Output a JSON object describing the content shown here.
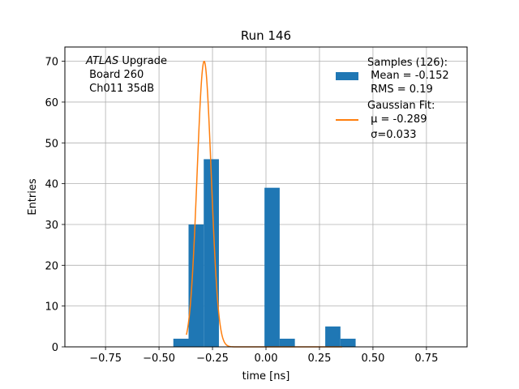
{
  "chart_data": {
    "type": "bar",
    "title": "Run 146",
    "xlabel": "time [ns]",
    "ylabel": "Entries",
    "xlim": [
      -0.94,
      0.94
    ],
    "ylim": [
      0,
      73.5
    ],
    "xticks": [
      -0.75,
      -0.5,
      -0.25,
      0.0,
      0.25,
      0.5,
      0.75
    ],
    "xtick_labels": [
      "−0.75",
      "−0.50",
      "−0.25",
      "0.00",
      "0.25",
      "0.50",
      "0.75"
    ],
    "yticks": [
      0,
      10,
      20,
      30,
      40,
      50,
      60,
      70
    ],
    "ytick_labels": [
      "0",
      "10",
      "20",
      "30",
      "40",
      "50",
      "60",
      "70"
    ],
    "grid": true,
    "legend_position": "top-right",
    "bin_width": 0.071,
    "histogram": {
      "name": "Samples (126):",
      "color": "#1f77b4",
      "bins": [
        {
          "x0": -0.433,
          "count": 2
        },
        {
          "x0": -0.362,
          "count": 30
        },
        {
          "x0": -0.291,
          "count": 46
        },
        {
          "x0": -0.007,
          "count": 39
        },
        {
          "x0": 0.064,
          "count": 2
        },
        {
          "x0": 0.277,
          "count": 5
        },
        {
          "x0": 0.348,
          "count": 2
        }
      ]
    },
    "fit": {
      "name": "Gaussian Fit:",
      "color": "#ff7f0e",
      "mu": -0.289,
      "sigma": 0.033,
      "amplitude": 70,
      "x_range": [
        -0.372,
        0.356
      ]
    },
    "legend": {
      "samples_label": "Samples (126):",
      "samples_mean": " Mean = -0.152",
      "samples_rms": " RMS = 0.19",
      "fit_label": "Gaussian Fit:",
      "fit_mu": " μ = -0.289",
      "fit_sigma": " σ=0.033"
    },
    "annotation": {
      "atlas": "ATLAS",
      "upgrade": " Upgrade",
      "board": " Board 260",
      "channel": " Ch011 35dB"
    }
  }
}
